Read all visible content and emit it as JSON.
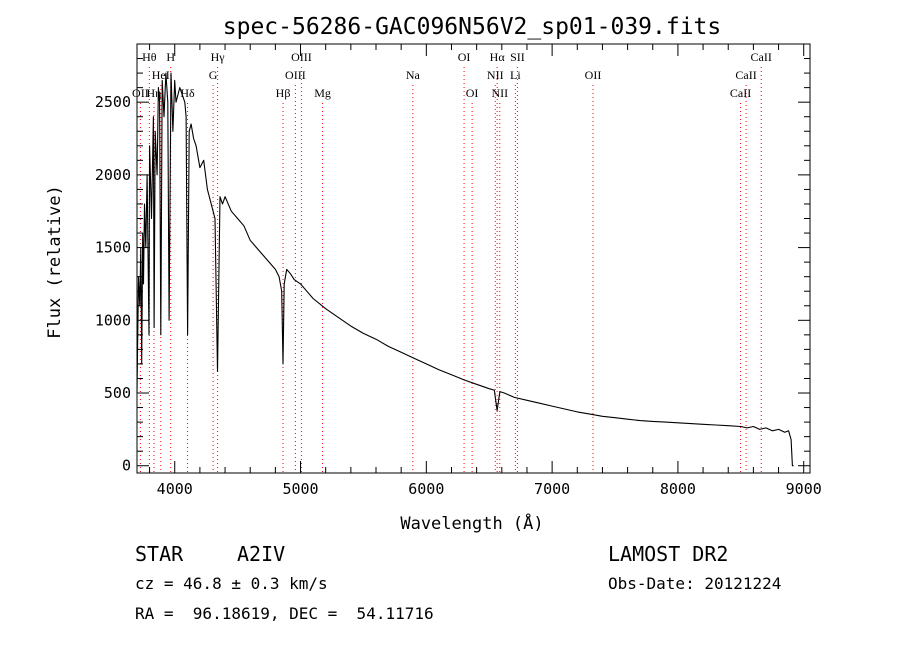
{
  "chart_data": {
    "type": "line",
    "title": "spec-56286-GAC096N56V2_sp01-039.fits",
    "xlabel": "Wavelength (Å)",
    "ylabel": "Flux (relative)",
    "xlim": [
      3700,
      9050
    ],
    "ylim": [
      -50,
      2900
    ],
    "x_ticks": [
      4000,
      5000,
      6000,
      7000,
      8000,
      9000
    ],
    "y_ticks": [
      0,
      500,
      1000,
      1500,
      2000,
      2500
    ],
    "line_color": "#000000",
    "marker_color": "#ff0000",
    "series": [
      {
        "x": [
          3700,
          3712,
          3722,
          3730,
          3737,
          3745,
          3752,
          3760,
          3770,
          3780,
          3795,
          3800,
          3815,
          3830,
          3836,
          3845,
          3860,
          3870,
          3880,
          3889,
          3900,
          3915,
          3930,
          3945,
          3955,
          3970,
          3985,
          4000,
          4010,
          4025,
          4040,
          4060,
          4080,
          4090,
          4102,
          4115,
          4130,
          4150,
          4170,
          4200,
          4230,
          4260,
          4290,
          4320,
          4340,
          4360,
          4380,
          4400,
          4450,
          4500,
          4550,
          4600,
          4650,
          4700,
          4750,
          4800,
          4830,
          4850,
          4861,
          4870,
          4890,
          4920,
          4950,
          5000,
          5050,
          5100,
          5200,
          5300,
          5400,
          5500,
          5600,
          5700,
          5800,
          5900,
          6000,
          6100,
          6200,
          6300,
          6400,
          6500,
          6540,
          6563,
          6585,
          6620,
          6700,
          6800,
          6900,
          7000,
          7100,
          7200,
          7300,
          7400,
          7500,
          7600,
          7700,
          7800,
          7900,
          8000,
          8100,
          8200,
          8300,
          8400,
          8500,
          8550,
          8600,
          8650,
          8700,
          8750,
          8800,
          8850,
          8880,
          8900,
          8910,
          8920
        ],
        "y": [
          500,
          1300,
          1100,
          1500,
          700,
          1600,
          1250,
          1800,
          1500,
          2000,
          900,
          2200,
          1700,
          2400,
          950,
          2300,
          2000,
          2600,
          2500,
          900,
          2650,
          2400,
          2700,
          2500,
          1000,
          2700,
          2300,
          2650,
          2500,
          2550,
          2600,
          2550,
          2500,
          2400,
          900,
          2300,
          2350,
          2250,
          2200,
          2050,
          2100,
          1900,
          1800,
          1700,
          650,
          1850,
          1800,
          1850,
          1750,
          1700,
          1650,
          1550,
          1500,
          1450,
          1400,
          1350,
          1300,
          1200,
          700,
          1250,
          1350,
          1320,
          1280,
          1250,
          1200,
          1150,
          1080,
          1020,
          960,
          910,
          870,
          820,
          780,
          740,
          700,
          660,
          625,
          590,
          560,
          530,
          520,
          380,
          510,
          500,
          470,
          450,
          430,
          410,
          390,
          370,
          355,
          340,
          330,
          320,
          310,
          305,
          300,
          295,
          290,
          285,
          280,
          275,
          270,
          260,
          270,
          250,
          260,
          240,
          250,
          230,
          240,
          180,
          0,
          0
        ]
      }
    ],
    "line_markers": [
      {
        "label": "Hθ",
        "x": 3798,
        "row": 1
      },
      {
        "label": "OII",
        "x": 3727,
        "row": 3
      },
      {
        "label": "Hη",
        "x": 3835,
        "row": 3
      },
      {
        "label": "HeI",
        "x": 3889,
        "row": 2
      },
      {
        "label": "H",
        "x": 3968,
        "row": 1
      },
      {
        "label": "Hδ",
        "x": 4102,
        "row": 3
      },
      {
        "label": "Hγ",
        "x": 4341,
        "row": 1
      },
      {
        "label": "G",
        "x": 4305,
        "row": 2
      },
      {
        "label": "Hβ",
        "x": 4861,
        "row": 3
      },
      {
        "label": "OIII",
        "x": 5007,
        "row": 1
      },
      {
        "label": "OIII",
        "x": 4959,
        "row": 2
      },
      {
        "label": "Mg",
        "x": 5175,
        "row": 3
      },
      {
        "label": "Na",
        "x": 5893,
        "row": 2
      },
      {
        "label": "OI",
        "x": 6300,
        "row": 1
      },
      {
        "label": "OI",
        "x": 6364,
        "row": 3
      },
      {
        "label": "Hα",
        "x": 6563,
        "row": 1
      },
      {
        "label": "NII",
        "x": 6548,
        "row": 2
      },
      {
        "label": "NII",
        "x": 6584,
        "row": 3
      },
      {
        "label": "SII",
        "x": 6724,
        "row": 1
      },
      {
        "label": "Li",
        "x": 6708,
        "row": 2
      },
      {
        "label": "OII",
        "x": 7325,
        "row": 2
      },
      {
        "label": "CaII",
        "x": 8662,
        "row": 1
      },
      {
        "label": "CaII",
        "x": 8542,
        "row": 2
      },
      {
        "label": "CaII",
        "x": 8498,
        "row": 3
      }
    ]
  },
  "info": {
    "object_class": "STAR",
    "subclass": "A2IV",
    "survey": "LAMOST DR2",
    "cz": "cz = 46.8 ± 0.3 km/s",
    "obs_date": "Obs-Date: 20121224",
    "radec": "RA =  96.18619, DEC =  54.11716"
  }
}
